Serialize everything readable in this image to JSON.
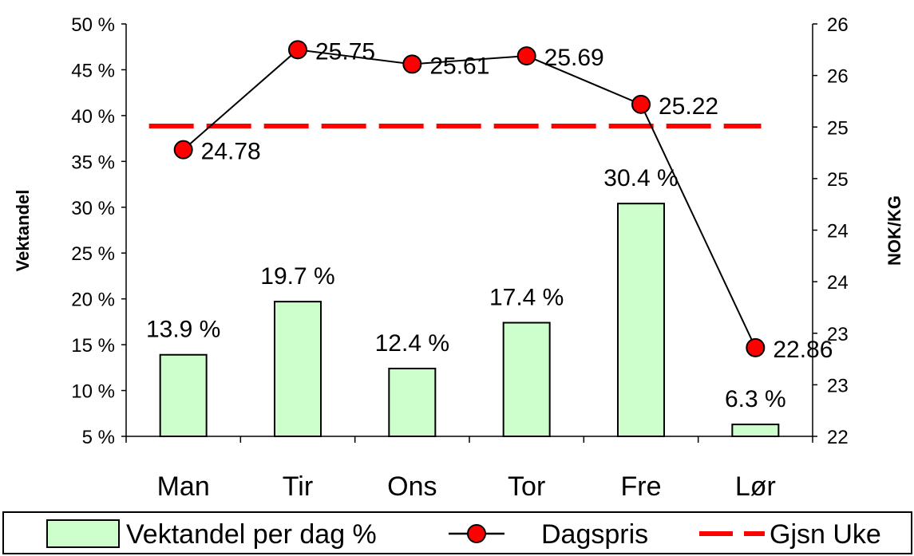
{
  "chart_data": {
    "type": "bar",
    "categories": [
      "Man",
      "Tir",
      "Ons",
      "Tor",
      "Fre",
      "Lør"
    ],
    "series": [
      {
        "name": "Vektandel per dag %",
        "kind": "bar",
        "axis": "left",
        "values": [
          13.9,
          19.7,
          12.4,
          17.4,
          30.4,
          6.3
        ],
        "labels": [
          "13.9 %",
          "19.7 %",
          "12.4 %",
          "17.4 %",
          "30.4 %",
          "6.3 %"
        ],
        "color": "#ccffcc"
      },
      {
        "name": "Dagspris",
        "kind": "line",
        "axis": "right",
        "values": [
          24.78,
          25.75,
          25.61,
          25.69,
          25.22,
          22.86
        ],
        "labels": [
          "24.78",
          "25.75",
          "25.61",
          "25.69",
          "25.22",
          "22.86"
        ],
        "color": "#ff0000"
      },
      {
        "name": "Gjsn Uke",
        "kind": "dashed-line",
        "axis": "right",
        "value": 25.01,
        "color": "#ff0000"
      }
    ],
    "left_axis": {
      "label": "Vektandel",
      "ylim": [
        5,
        50
      ],
      "ticks": [
        5,
        10,
        15,
        20,
        25,
        30,
        35,
        40,
        45,
        50
      ],
      "tick_labels": [
        "5 %",
        "10 %",
        "15 %",
        "20 %",
        "25 %",
        "30 %",
        "35 %",
        "40 %",
        "45 %",
        "50 %"
      ]
    },
    "right_axis": {
      "label": "NOK/KG",
      "ylim": [
        22,
        26
      ],
      "ticks": [
        22,
        22.5,
        23,
        23.5,
        24,
        24.5,
        25,
        25.5,
        26,
        26.5
      ],
      "tick_labels": [
        "22",
        "23",
        "23",
        "24",
        "24",
        "25",
        "25",
        "26",
        "26",
        "26"
      ]
    },
    "grid": false,
    "legend": "bottom"
  }
}
